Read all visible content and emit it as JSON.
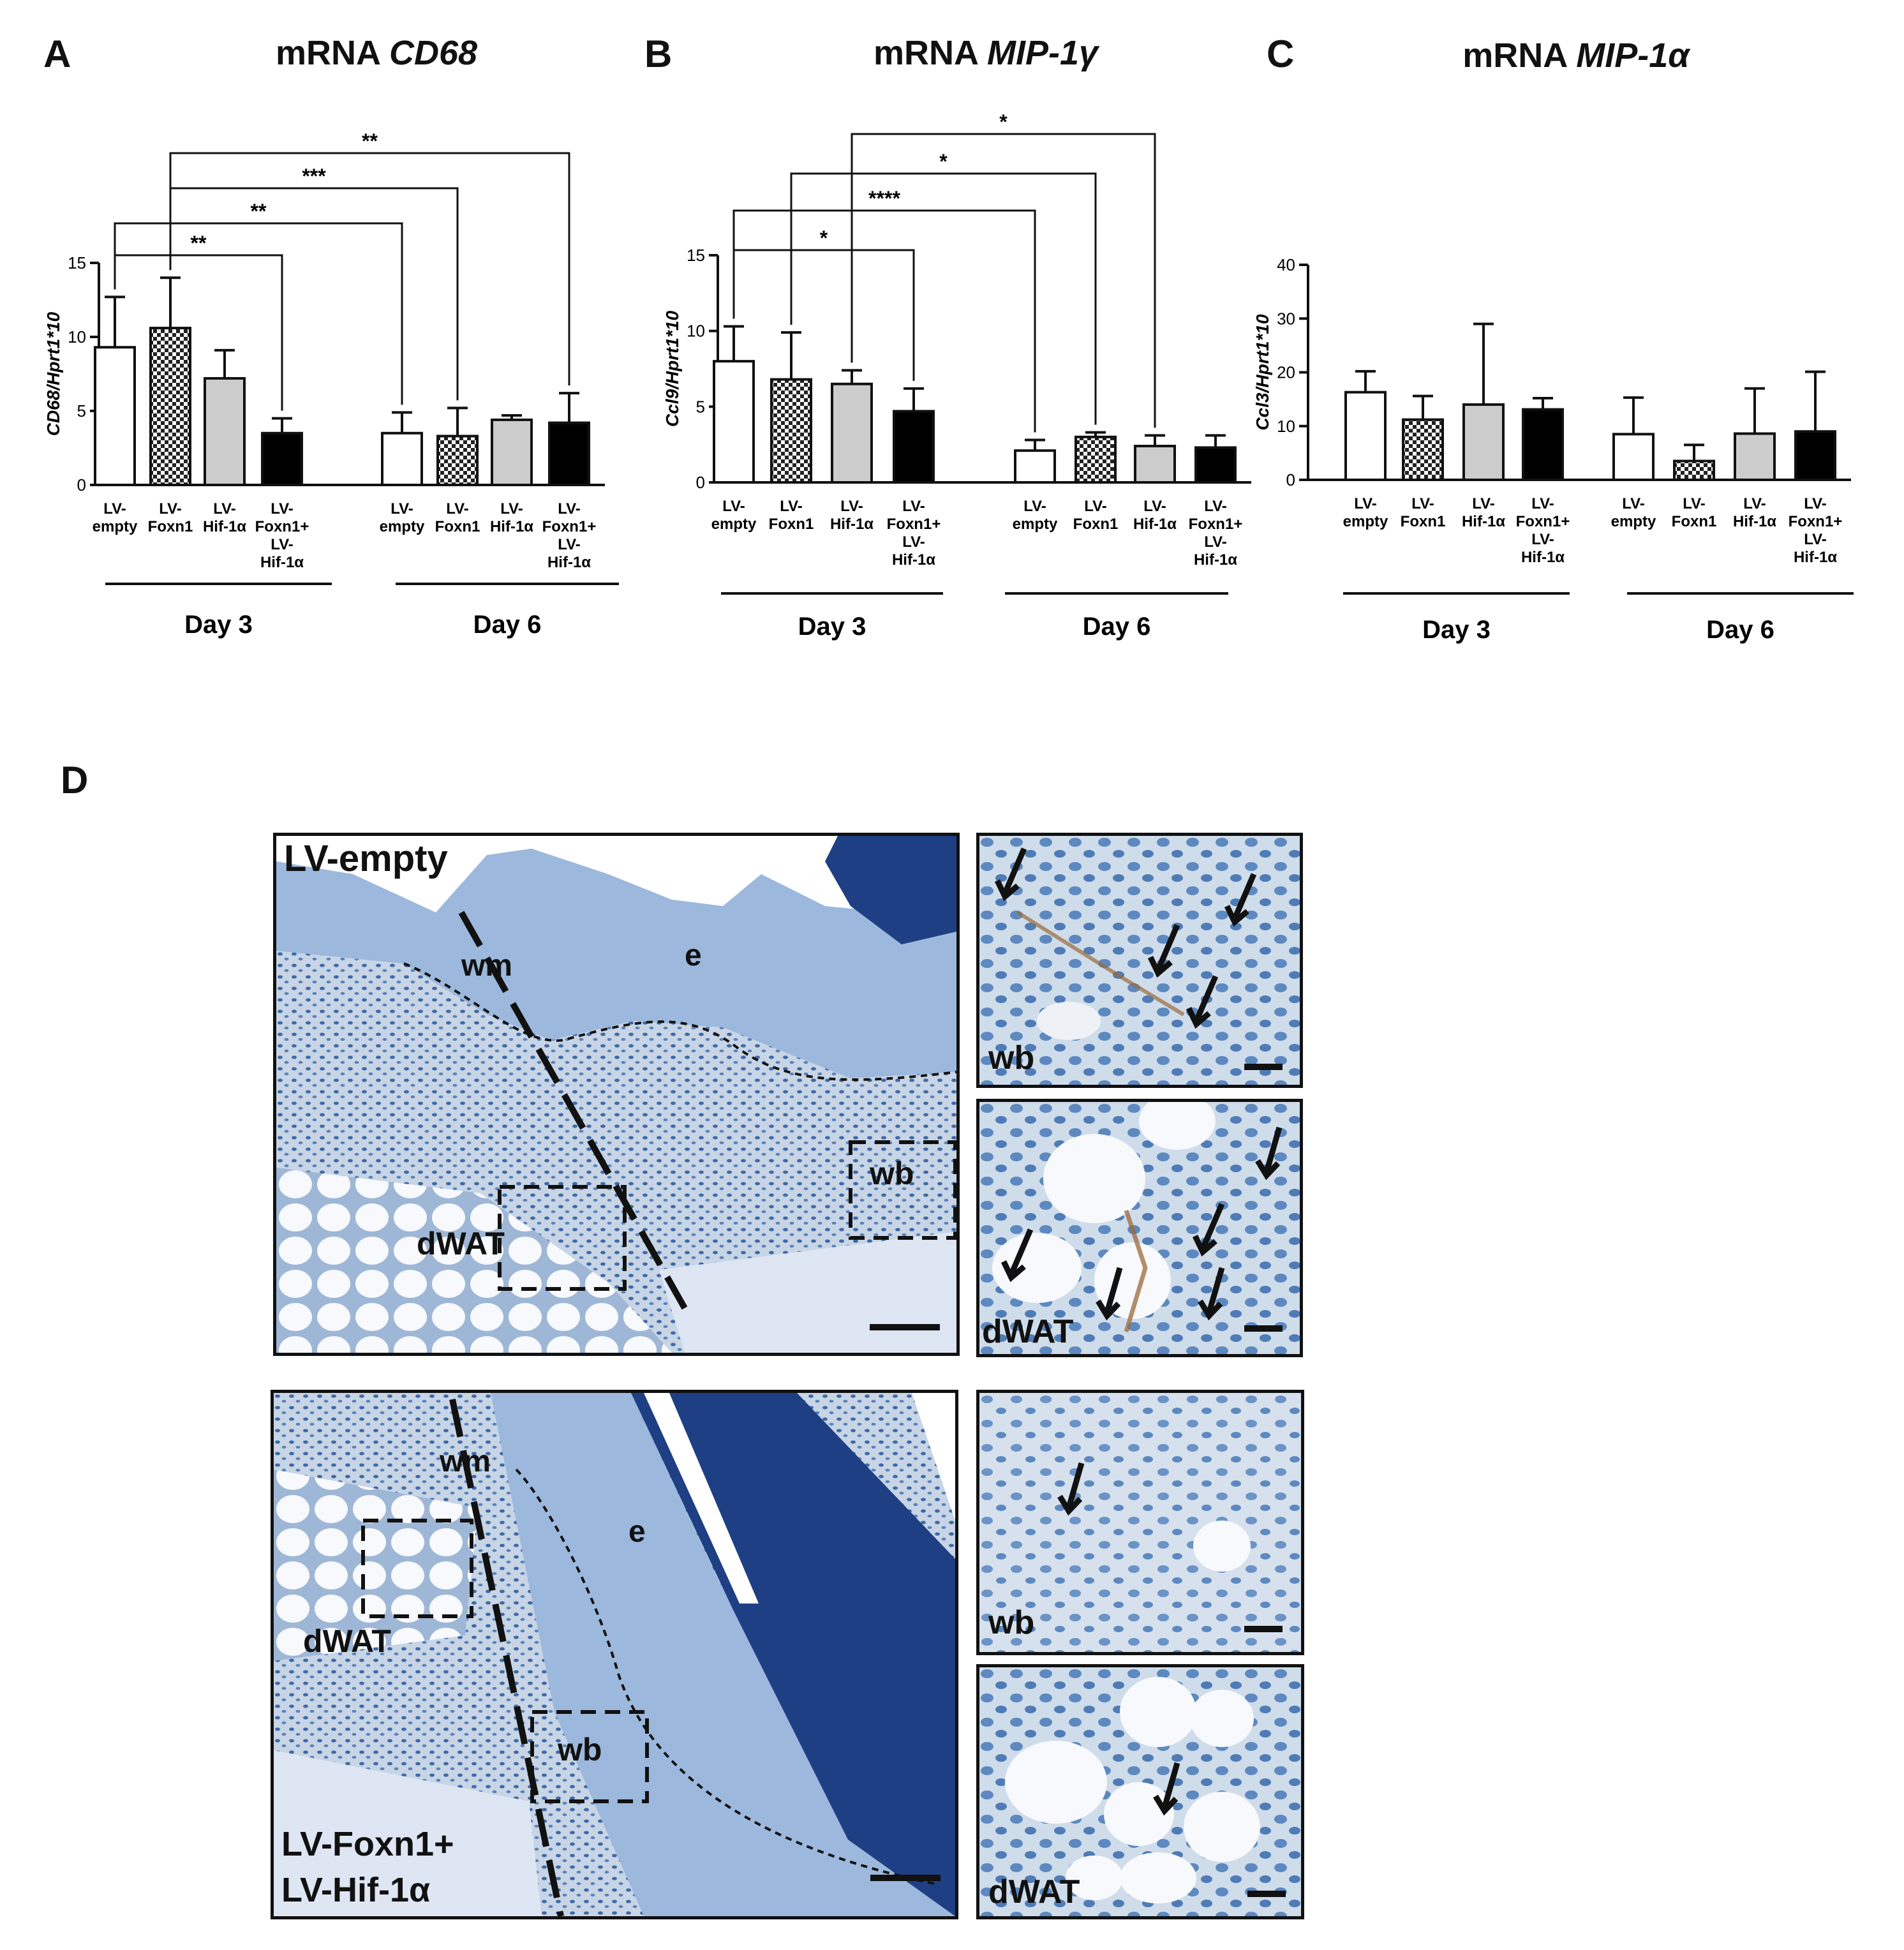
{
  "panels": {
    "A": "A",
    "B": "B",
    "C": "C",
    "D": "D"
  },
  "tick_labels": [
    "LV-empty",
    "LV-Foxn1",
    "LV-Hif-1α",
    "LV-Foxn1+LV-Hif-1α"
  ],
  "group_labels": [
    "Day 3",
    "Day 6"
  ],
  "chart_data": [
    {
      "type": "bar",
      "title_prefix": "mRNA ",
      "title_italic": "CD68",
      "ylabel": "CD68/Hprt1*10",
      "ylim": [
        0,
        15
      ],
      "yticks": [
        0,
        5,
        10,
        15
      ],
      "groups": [
        "Day 3",
        "Day 6"
      ],
      "categories": [
        "LV-empty",
        "LV-Foxn1",
        "LV-Hif-1α",
        "LV-Foxn1+LV-Hif-1α"
      ],
      "values": [
        [
          9.3,
          10.6,
          7.2,
          3.5
        ],
        [
          3.5,
          3.3,
          4.4,
          4.2
        ]
      ],
      "errors": [
        [
          3.4,
          3.4,
          1.9,
          1.0
        ],
        [
          1.4,
          1.9,
          0.3,
          2.0
        ]
      ],
      "significance": [
        {
          "from": [
            0,
            0
          ],
          "to": [
            0,
            3
          ],
          "label": "**",
          "level": 0
        },
        {
          "from": [
            0,
            0
          ],
          "to": [
            1,
            0
          ],
          "label": "**",
          "level": 1
        },
        {
          "from": [
            0,
            1
          ],
          "to": [
            1,
            1
          ],
          "label": "***",
          "level": 2
        },
        {
          "from": [
            0,
            1
          ],
          "to": [
            1,
            3
          ],
          "label": "**",
          "level": 3
        }
      ]
    },
    {
      "type": "bar",
      "title_prefix": "mRNA ",
      "title_italic": "MIP-1γ",
      "ylabel": "Ccl9/Hprt1*10",
      "ylim": [
        0,
        15
      ],
      "yticks": [
        0,
        5,
        10,
        15
      ],
      "groups": [
        "Day 3",
        "Day 6"
      ],
      "categories": [
        "LV-empty",
        "LV-Foxn1",
        "LV-Hif-1α",
        "LV-Foxn1+LV-Hif-1α"
      ],
      "values": [
        [
          8.0,
          6.8,
          6.5,
          4.7
        ],
        [
          2.1,
          3.0,
          2.4,
          2.3
        ]
      ],
      "errors": [
        [
          2.3,
          3.1,
          0.9,
          1.5
        ],
        [
          0.7,
          0.3,
          0.7,
          0.8
        ]
      ],
      "significance": [
        {
          "from": [
            0,
            0
          ],
          "to": [
            0,
            3
          ],
          "label": "*",
          "level": 0
        },
        {
          "from": [
            0,
            0
          ],
          "to": [
            1,
            0
          ],
          "label": "****",
          "level": 1
        },
        {
          "from": [
            0,
            1
          ],
          "to": [
            1,
            1
          ],
          "label": "*",
          "level": 2
        },
        {
          "from": [
            0,
            2
          ],
          "to": [
            1,
            2
          ],
          "label": "*",
          "level": 3
        }
      ]
    },
    {
      "type": "bar",
      "title_prefix": "mRNA ",
      "title_italic": "MIP-1α",
      "ylabel": "Ccl3/Hprt1*10",
      "ylim": [
        0,
        40
      ],
      "yticks": [
        0,
        10,
        20,
        30,
        40
      ],
      "groups": [
        "Day 3",
        "Day 6"
      ],
      "categories": [
        "LV-empty",
        "LV-Foxn1",
        "LV-Hif-1α",
        "LV-Foxn1+LV-Hif-1α"
      ],
      "values": [
        [
          16.3,
          11.2,
          14.0,
          13.1
        ],
        [
          8.5,
          3.5,
          8.6,
          9.0
        ]
      ],
      "errors": [
        [
          3.9,
          4.4,
          15.0,
          2.1
        ],
        [
          6.8,
          3.0,
          8.4,
          11.1
        ]
      ],
      "significance": []
    }
  ],
  "micrographs": {
    "top_main": {
      "label": "LV-empty",
      "wm": "wm",
      "e": "e",
      "wb": "wb",
      "dwat": "dWAT"
    },
    "top_wb": {
      "label": "wb"
    },
    "top_dwat": {
      "label": "dWAT"
    },
    "bottom_main": {
      "label_line1": "LV-Foxn1+",
      "label_line2": "LV-Hif-1α",
      "wm": "wm",
      "e": "e",
      "wb": "wb",
      "dwat": "dWAT"
    },
    "bottom_wb": {
      "label": "wb"
    },
    "bottom_dwat": {
      "label": "dWAT"
    }
  },
  "colors": {
    "tissue_bg": "#c9d6e6",
    "epidermis": "#8fb0d8",
    "nuclei": "#2f5c9a",
    "dark_stain": "#1b3f86",
    "dwat": "#f7f9fc",
    "cd68_stain": "#9a6a3a"
  }
}
